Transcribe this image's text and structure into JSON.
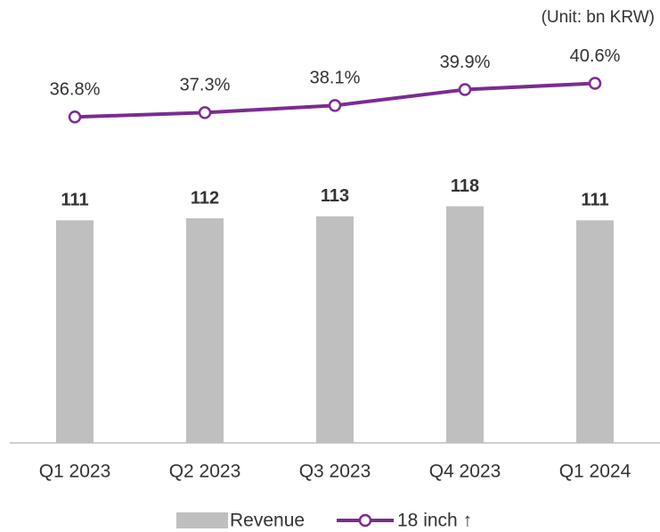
{
  "chart_data": {
    "type": "bar",
    "annotation": "(Unit: bn KRW)",
    "categories": [
      "Q1 2023",
      "Q2 2023",
      "Q3 2023",
      "Q4 2023",
      "Q1 2024"
    ],
    "series": [
      {
        "name": "Revenue",
        "type": "bar",
        "color": "#bfbfbf",
        "values": [
          111,
          112,
          113,
          118,
          111
        ]
      },
      {
        "name": "18 inch ↑",
        "type": "line",
        "axis": "y2",
        "color": "#7b2c91",
        "values": [
          36.8,
          37.3,
          38.1,
          39.9,
          40.6
        ],
        "value_labels": [
          "36.8%",
          "37.3%",
          "38.1%",
          "39.9%",
          "40.6%"
        ]
      }
    ],
    "ylim": [
      0,
      212
    ],
    "y2lim": [
      0,
      48
    ]
  }
}
